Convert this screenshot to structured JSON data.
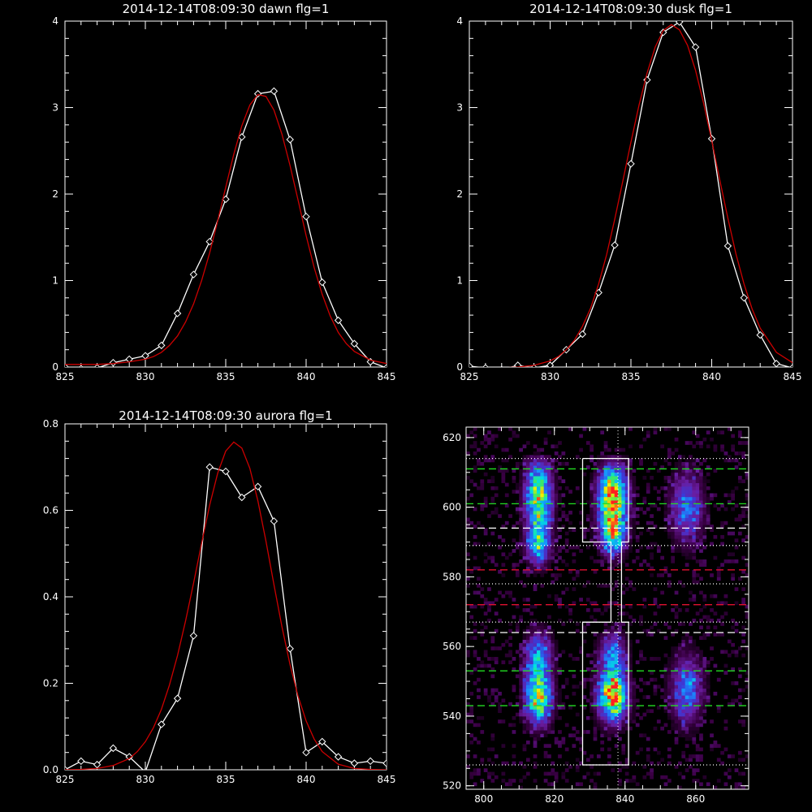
{
  "chart_data": [
    {
      "type": "line",
      "title": "2014-12-14T08:09:30 dawn flg=1",
      "xlim": [
        825,
        845
      ],
      "ylim": [
        0,
        4
      ],
      "xticks": [
        "825",
        "830",
        "835",
        "840",
        "845"
      ],
      "yticks": [
        "0",
        "1",
        "2",
        "3",
        "4"
      ],
      "series": [
        {
          "role": "observed",
          "color": "#ffffff",
          "marker": "diamond",
          "x": [
            825,
            826,
            827,
            828,
            829,
            830,
            831,
            832,
            833,
            834,
            835,
            836,
            837,
            838,
            839,
            840,
            841,
            842,
            843,
            844,
            845
          ],
          "y": [
            0.0,
            -0.02,
            -0.01,
            0.05,
            0.09,
            0.13,
            0.25,
            0.62,
            1.07,
            1.45,
            1.94,
            2.66,
            3.16,
            3.19,
            2.63,
            1.74,
            0.98,
            0.54,
            0.27,
            0.06,
            -0.01
          ]
        },
        {
          "role": "fit",
          "color": "#cc0000",
          "x": [
            825,
            826,
            827,
            828,
            829,
            830,
            830.5,
            831,
            831.5,
            832,
            832.5,
            833,
            833.5,
            834,
            834.5,
            835,
            835.5,
            836,
            836.5,
            837,
            837.5,
            838,
            838.5,
            839,
            839.5,
            840,
            840.5,
            841,
            841.5,
            842,
            842.5,
            843,
            844,
            845
          ],
          "y": [
            0.03,
            0.03,
            0.03,
            0.04,
            0.06,
            0.09,
            0.12,
            0.17,
            0.25,
            0.36,
            0.52,
            0.73,
            1.0,
            1.32,
            1.69,
            2.08,
            2.46,
            2.79,
            3.03,
            3.15,
            3.13,
            2.97,
            2.69,
            2.33,
            1.93,
            1.52,
            1.15,
            0.84,
            0.59,
            0.4,
            0.27,
            0.18,
            0.08,
            0.04
          ]
        }
      ]
    },
    {
      "type": "line",
      "title": "2014-12-14T08:09:30 dusk flg=1",
      "xlim": [
        825,
        845
      ],
      "ylim": [
        0,
        4
      ],
      "xticks": [
        "825",
        "830",
        "835",
        "840",
        "845"
      ],
      "yticks": [
        "0",
        "1",
        "2",
        "3",
        "4"
      ],
      "series": [
        {
          "role": "observed",
          "color": "#ffffff",
          "marker": "diamond",
          "x": [
            825,
            826,
            827,
            828,
            829,
            830,
            831,
            832,
            833,
            834,
            835,
            836,
            837,
            838,
            839,
            840,
            841,
            842,
            843,
            844,
            845
          ],
          "y": [
            0.01,
            -0.01,
            -0.03,
            0.02,
            -0.01,
            0.02,
            0.2,
            0.38,
            0.86,
            1.41,
            2.35,
            3.32,
            3.87,
            3.99,
            3.7,
            2.64,
            1.4,
            0.8,
            0.37,
            0.04,
            -0.01
          ]
        },
        {
          "role": "fit",
          "color": "#cc0000",
          "x": [
            825,
            826,
            827,
            828,
            829,
            830,
            830.5,
            831,
            831.5,
            832,
            832.5,
            833,
            833.5,
            834,
            834.5,
            835,
            835.5,
            836,
            836.5,
            837,
            837.5,
            838,
            838.5,
            839,
            839.5,
            840,
            840.5,
            841,
            841.5,
            842,
            842.5,
            843,
            844,
            845
          ],
          "y": [
            -0.02,
            -0.02,
            -0.01,
            0.0,
            0.02,
            0.07,
            0.12,
            0.2,
            0.31,
            0.47,
            0.68,
            0.96,
            1.3,
            1.71,
            2.15,
            2.6,
            3.03,
            3.4,
            3.7,
            3.89,
            3.96,
            3.9,
            3.72,
            3.43,
            3.05,
            2.62,
            2.16,
            1.72,
            1.31,
            0.96,
            0.67,
            0.45,
            0.17,
            0.05
          ]
        }
      ]
    },
    {
      "type": "line",
      "title": "2014-12-14T08:09:30 aurora flg=1",
      "xlim": [
        825,
        845
      ],
      "ylim": [
        0,
        0.8
      ],
      "xticks": [
        "825",
        "830",
        "835",
        "840",
        "845"
      ],
      "yticks": [
        "0.0",
        "0.2",
        "0.4",
        "0.6",
        "0.8"
      ],
      "series": [
        {
          "role": "observed",
          "color": "#ffffff",
          "marker": "diamond",
          "x": [
            825,
            826,
            827,
            828,
            829,
            830,
            831,
            832,
            833,
            834,
            835,
            836,
            837,
            838,
            839,
            840,
            841,
            842,
            843,
            844,
            845
          ],
          "y": [
            0.0,
            0.02,
            0.012,
            0.05,
            0.03,
            -0.005,
            0.105,
            0.165,
            0.31,
            0.7,
            0.69,
            0.63,
            0.655,
            0.575,
            0.28,
            0.04,
            0.065,
            0.03,
            0.015,
            0.02,
            0.015
          ]
        },
        {
          "role": "fit",
          "color": "#cc0000",
          "x": [
            825,
            826,
            827,
            828,
            829,
            829.5,
            830,
            830.5,
            831,
            831.5,
            832,
            832.5,
            833,
            833.5,
            834,
            834.5,
            835,
            835.5,
            836,
            836.5,
            837,
            837.5,
            838,
            838.5,
            839,
            839.5,
            840,
            840.5,
            841,
            842,
            843,
            844,
            845
          ],
          "y": [
            0.0,
            0.001,
            0.003,
            0.01,
            0.026,
            0.042,
            0.065,
            0.097,
            0.14,
            0.196,
            0.264,
            0.344,
            0.432,
            0.524,
            0.612,
            0.686,
            0.737,
            0.758,
            0.744,
            0.697,
            0.622,
            0.529,
            0.428,
            0.33,
            0.243,
            0.17,
            0.113,
            0.071,
            0.042,
            0.013,
            0.003,
            0.001,
            0.0
          ]
        }
      ]
    },
    {
      "type": "heatmap",
      "xlim": [
        795,
        875
      ],
      "ylim": [
        519,
        623
      ],
      "xticks": [
        "800",
        "820",
        "840",
        "860"
      ],
      "yticks": [
        "520",
        "540",
        "560",
        "580",
        "600",
        "620"
      ],
      "colormap": [
        "#000000",
        "#3a0044",
        "#6a1ca0",
        "#3a3ad8",
        "#1a8cff",
        "#00e0e0",
        "#40e860",
        "#f0f000",
        "#ff2020"
      ],
      "blobs": [
        {
          "x": 815.5,
          "y": 603,
          "sx": 2.6,
          "sy": 7,
          "amp": 0.8
        },
        {
          "x": 815.5,
          "y": 589,
          "sx": 2.4,
          "sy": 4,
          "amp": 0.5
        },
        {
          "x": 815.5,
          "y": 557,
          "sx": 2.6,
          "sy": 5,
          "amp": 0.5
        },
        {
          "x": 815.5,
          "y": 545,
          "sx": 2.6,
          "sy": 5,
          "amp": 0.8
        },
        {
          "x": 836.5,
          "y": 603,
          "sx": 2.8,
          "sy": 6,
          "amp": 1.0
        },
        {
          "x": 836.5,
          "y": 592,
          "sx": 2.4,
          "sy": 4,
          "amp": 0.62
        },
        {
          "x": 836.5,
          "y": 558,
          "sx": 2.6,
          "sy": 4,
          "amp": 0.45
        },
        {
          "x": 836.5,
          "y": 546,
          "sx": 2.8,
          "sy": 5,
          "amp": 1.0
        },
        {
          "x": 857.5,
          "y": 600,
          "sx": 3.2,
          "sy": 7,
          "amp": 0.42
        },
        {
          "x": 857.5,
          "y": 548,
          "sx": 3.2,
          "sy": 7,
          "amp": 0.42
        }
      ],
      "vline_x": 838,
      "dotted_y": [
        614,
        589,
        578,
        567,
        526
      ],
      "dashed_green_y": [
        611,
        601,
        553,
        543
      ],
      "dashed_white_y": [
        594,
        564
      ],
      "dashed_red_y": [
        582,
        572
      ],
      "box_outline": [
        [
          828,
          614
        ],
        [
          841,
          614
        ],
        [
          841,
          590
        ],
        [
          839,
          590
        ],
        [
          839,
          567
        ],
        [
          841,
          567
        ],
        [
          841,
          526
        ],
        [
          828,
          526
        ],
        [
          828,
          567
        ],
        [
          836,
          567
        ],
        [
          836,
          590
        ],
        [
          828,
          590
        ],
        [
          828,
          614
        ]
      ]
    }
  ]
}
